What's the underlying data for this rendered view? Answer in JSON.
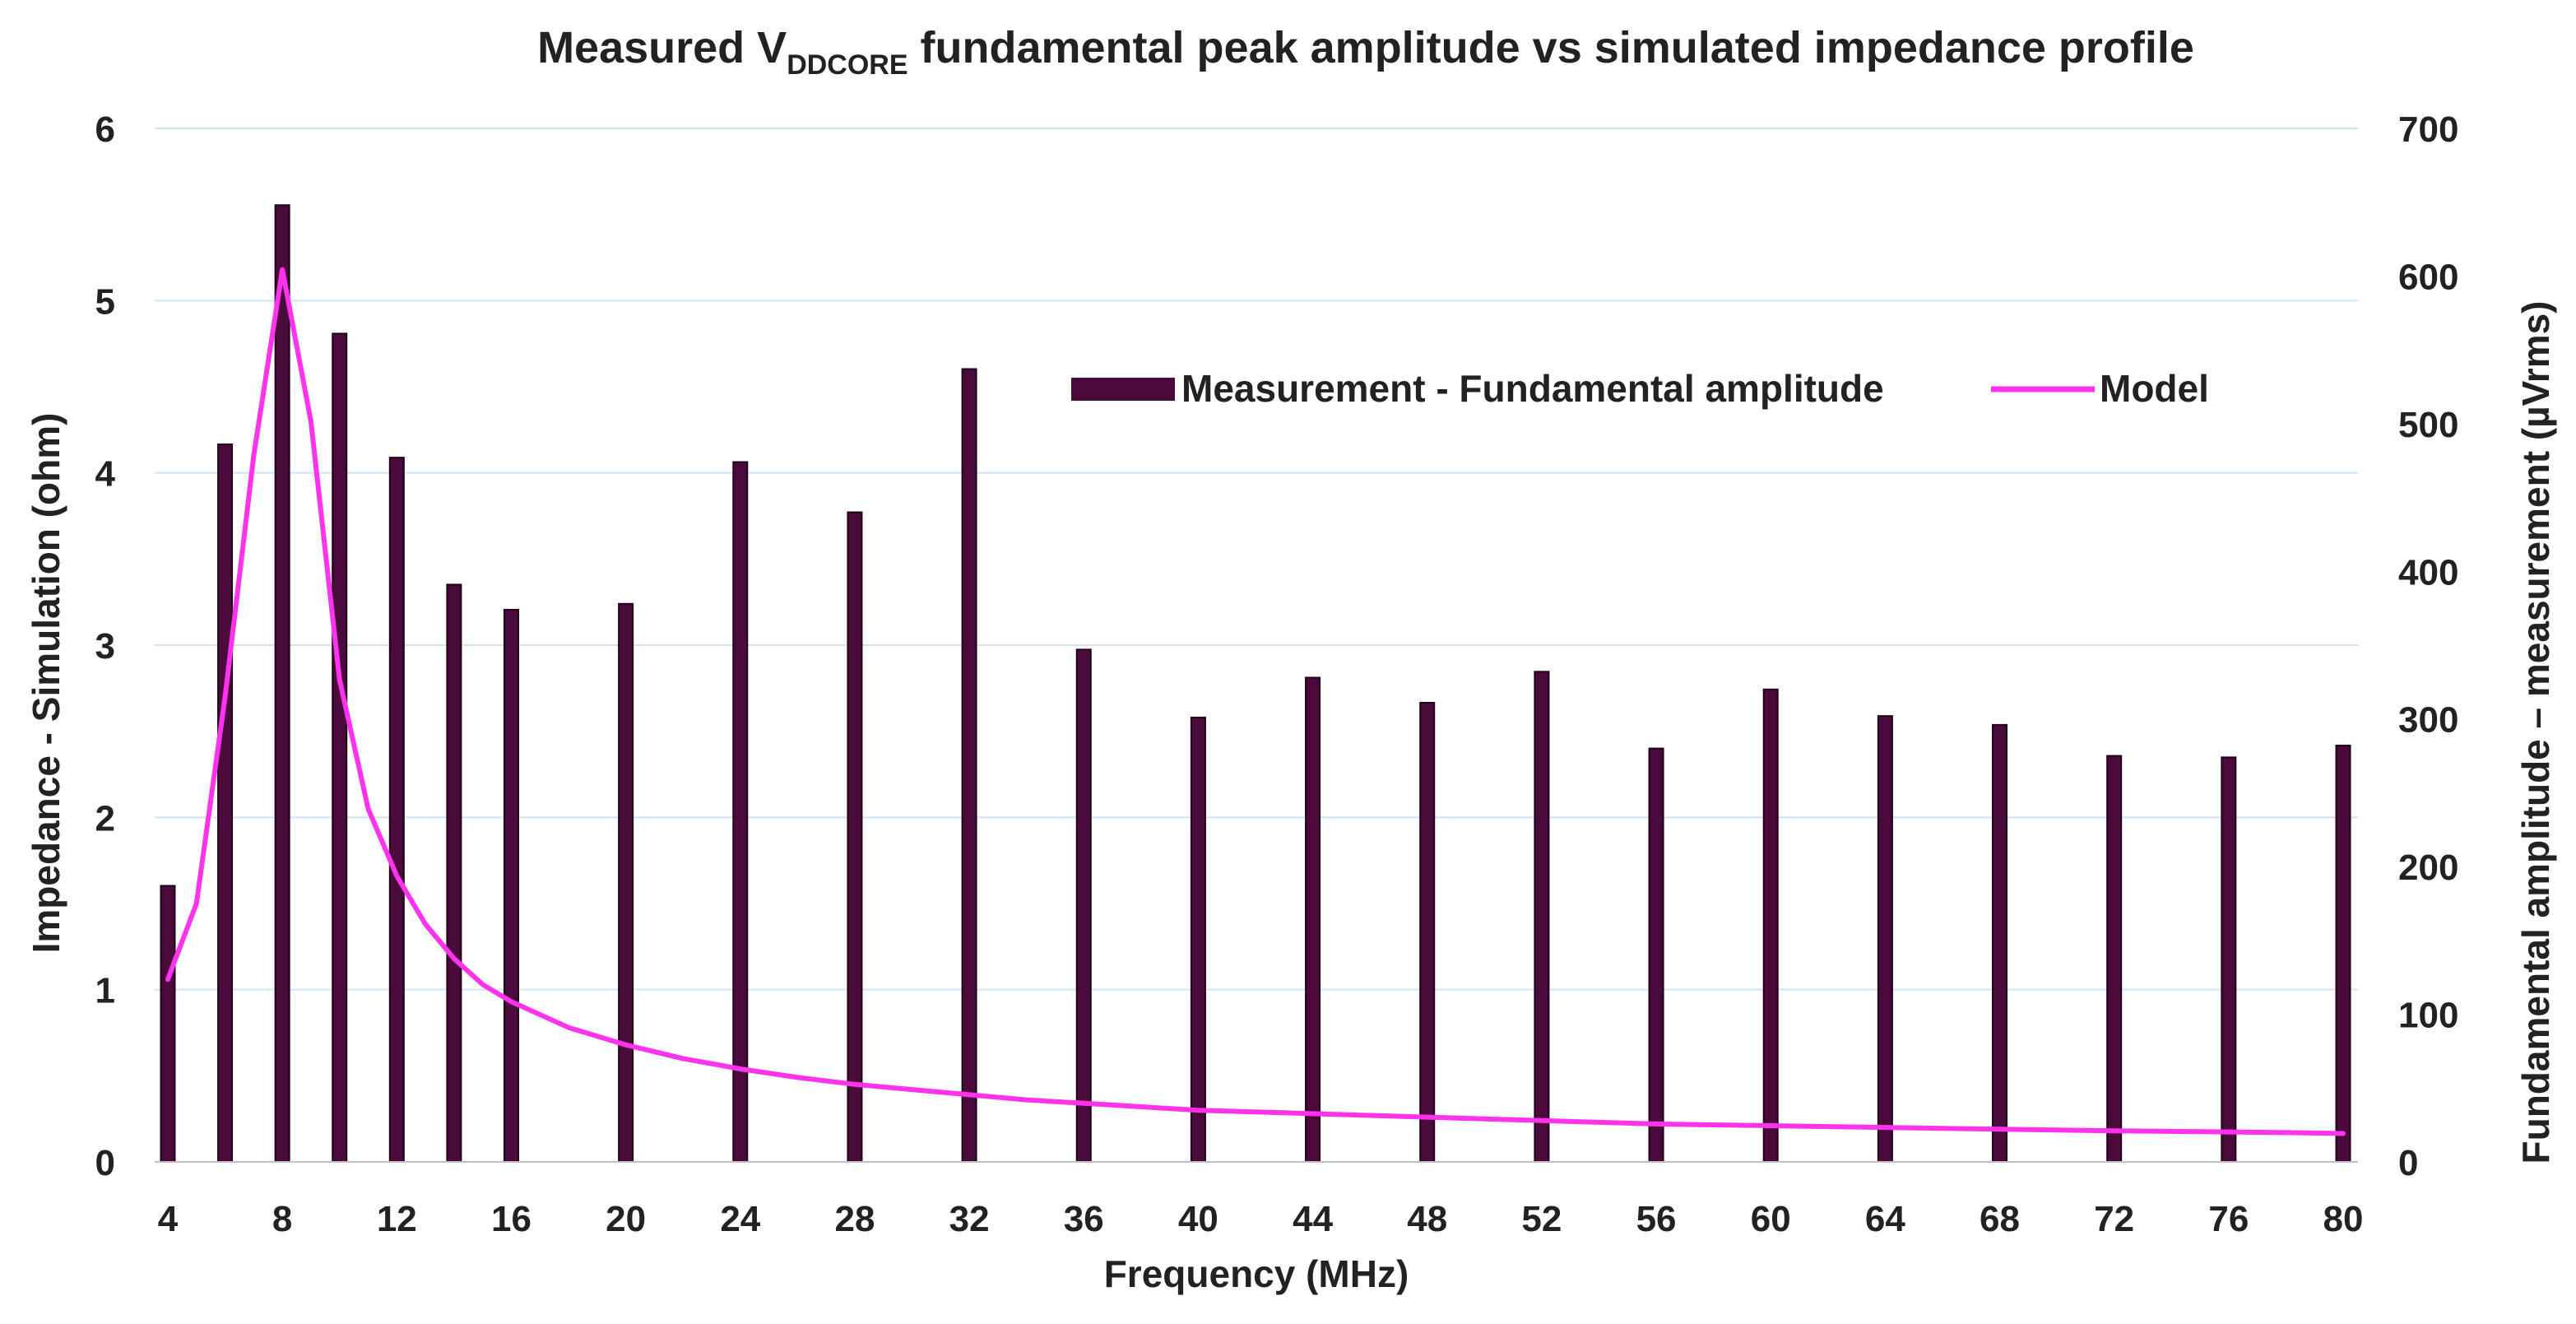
{
  "chart_data": {
    "type": "bar",
    "title_parts": {
      "prefix": "Measured V",
      "subscript": "DDCORE",
      "suffix": " fundamental peak amplitude vs simulated impedance profile"
    },
    "xlabel": "Frequency (MHz)",
    "ylabel_left": "Impedance - Simulation (ohm)",
    "ylabel_right": "Fundamental amplitude – measurement (µVrms)",
    "x_range": [
      4,
      80
    ],
    "x_ticks": [
      4,
      8,
      12,
      16,
      20,
      24,
      28,
      32,
      36,
      40,
      44,
      48,
      52,
      56,
      60,
      64,
      68,
      72,
      76,
      80
    ],
    "ylim_left": [
      0,
      6
    ],
    "y_ticks_left": [
      0,
      1,
      2,
      3,
      4,
      5,
      6
    ],
    "ylim_right": [
      0,
      700
    ],
    "y_ticks_right": [
      0,
      100,
      200,
      300,
      400,
      500,
      600,
      700
    ],
    "grid": true,
    "legend_position": "upper-center-right",
    "series": [
      {
        "name": "Measurement - Fundamental amplitude",
        "type": "bar",
        "axis": "right",
        "color": "#4a0a3c",
        "x": [
          4,
          6,
          8,
          10,
          12,
          14,
          16,
          20,
          24,
          28,
          32,
          36,
          40,
          44,
          48,
          52,
          56,
          60,
          64,
          68,
          72,
          76,
          80
        ],
        "values": [
          187,
          486,
          648,
          561,
          477,
          391,
          374,
          378,
          474,
          440,
          537,
          347,
          301,
          328,
          311,
          332,
          280,
          320,
          302,
          296,
          275,
          274,
          282
        ]
      },
      {
        "name": "Model",
        "type": "line",
        "axis": "left",
        "color": "#ff33ee",
        "x": [
          4,
          5,
          6,
          7,
          8,
          9,
          10,
          11,
          12,
          13,
          14,
          15,
          16,
          18,
          20,
          22,
          24,
          26,
          28,
          30,
          32,
          34,
          36,
          38,
          40,
          42,
          44,
          46,
          48,
          50,
          52,
          54,
          56,
          58,
          60,
          62,
          64,
          66,
          68,
          70,
          72,
          74,
          76,
          78,
          80
        ],
        "values": [
          1.06,
          1.5,
          2.7,
          4.1,
          5.18,
          4.3,
          2.8,
          2.05,
          1.66,
          1.38,
          1.18,
          1.03,
          0.93,
          0.78,
          0.68,
          0.6,
          0.54,
          0.49,
          0.45,
          0.42,
          0.39,
          0.36,
          0.34,
          0.32,
          0.3,
          0.29,
          0.28,
          0.27,
          0.26,
          0.25,
          0.24,
          0.23,
          0.22,
          0.215,
          0.21,
          0.205,
          0.2,
          0.195,
          0.19,
          0.185,
          0.18,
          0.177,
          0.174,
          0.17,
          0.165
        ]
      }
    ]
  }
}
